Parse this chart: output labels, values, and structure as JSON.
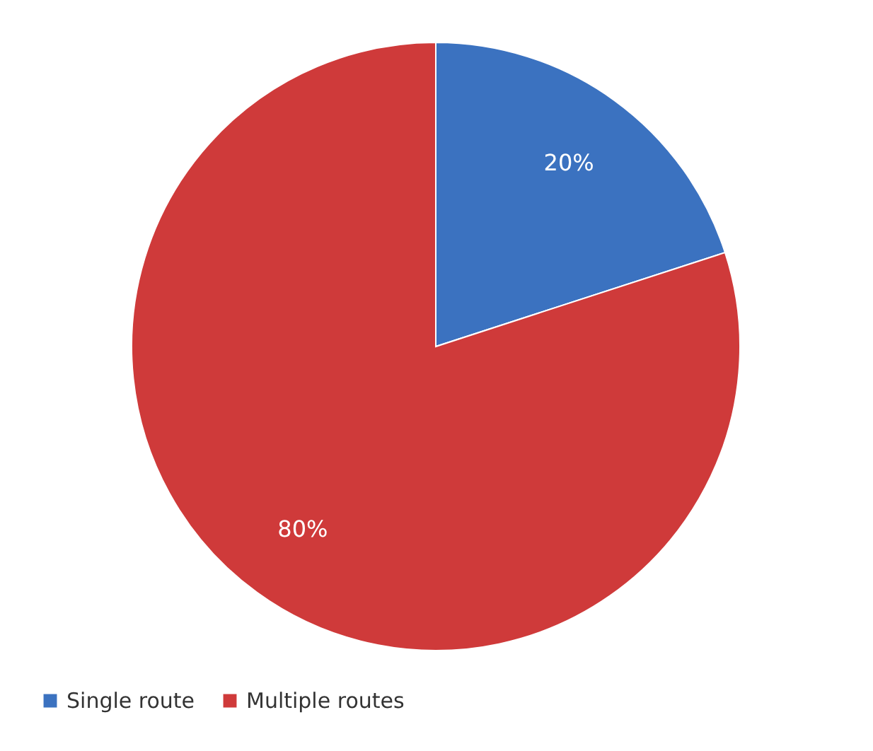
{
  "chart_data": {
    "type": "pie",
    "categories": [
      "Single route",
      "Multiple routes"
    ],
    "values": [
      20,
      80
    ],
    "colors": [
      "#3b72c0",
      "#cf3a3a"
    ],
    "value_labels": [
      "20%",
      "80%"
    ],
    "legend": "bottom"
  }
}
